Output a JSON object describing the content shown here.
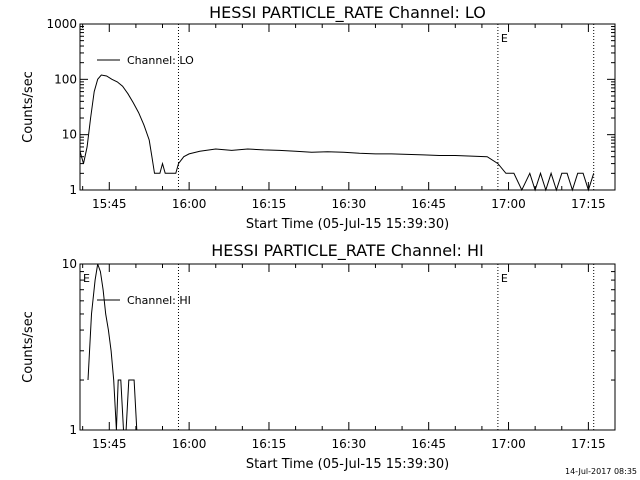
{
  "footer_timestamp": "14-Jul-2017 08:35",
  "chart_data": [
    {
      "type": "line",
      "title": "HESSI PARTICLE_RATE Channel: LO",
      "xlabel": "Start Time (05-Jul-15 15:39:30)",
      "ylabel": "Counts/sec",
      "yscale": "log",
      "ylim": [
        1,
        1000
      ],
      "xlim": [
        "15:39:30",
        "17:20:00"
      ],
      "xticks": [
        "15:45",
        "16:00",
        "16:15",
        "16:30",
        "16:45",
        "17:00",
        "17:15"
      ],
      "yticks": [
        "1",
        "10",
        "100",
        "1000"
      ],
      "legend": {
        "label": "Channel: LO",
        "position": "top-left"
      },
      "markers": [
        {
          "time": "15:39:30",
          "label": ""
        },
        {
          "time": "15:58:00",
          "label": ""
        },
        {
          "time": "16:58:00",
          "label": "E"
        },
        {
          "time": "17:16:00",
          "label": ""
        }
      ],
      "series": [
        {
          "name": "Channel: LO",
          "points": [
            [
              "15:39:30",
              5
            ],
            [
              "15:40:10",
              3
            ],
            [
              "15:40:50",
              6
            ],
            [
              "15:41:30",
              20
            ],
            [
              "15:42:10",
              60
            ],
            [
              "15:42:50",
              100
            ],
            [
              "15:43:30",
              120
            ],
            [
              "15:44:30",
              115
            ],
            [
              "15:45:30",
              100
            ],
            [
              "15:46:30",
              90
            ],
            [
              "15:47:30",
              75
            ],
            [
              "15:48:30",
              55
            ],
            [
              "15:49:30",
              38
            ],
            [
              "15:50:30",
              25
            ],
            [
              "15:51:30",
              15
            ],
            [
              "15:52:30",
              8
            ],
            [
              "15:53:00",
              4
            ],
            [
              "15:53:30",
              2
            ],
            [
              "15:54:30",
              2
            ],
            [
              "15:55:00",
              3
            ],
            [
              "15:55:30",
              2
            ],
            [
              "15:56:30",
              2
            ],
            [
              "15:57:30",
              2
            ],
            [
              "15:58:00",
              3
            ],
            [
              "15:59:00",
              4
            ],
            [
              "16:00:00",
              4.5
            ],
            [
              "16:02:00",
              5
            ],
            [
              "16:05:00",
              5.5
            ],
            [
              "16:08:00",
              5.2
            ],
            [
              "16:11:00",
              5.5
            ],
            [
              "16:14:00",
              5.3
            ],
            [
              "16:17:00",
              5.2
            ],
            [
              "16:20:00",
              5
            ],
            [
              "16:23:00",
              4.8
            ],
            [
              "16:26:00",
              4.9
            ],
            [
              "16:29:00",
              4.8
            ],
            [
              "16:32:00",
              4.6
            ],
            [
              "16:35:00",
              4.5
            ],
            [
              "16:38:00",
              4.5
            ],
            [
              "16:41:00",
              4.4
            ],
            [
              "16:44:00",
              4.3
            ],
            [
              "16:47:00",
              4.2
            ],
            [
              "16:50:00",
              4.2
            ],
            [
              "16:53:00",
              4.1
            ],
            [
              "16:56:00",
              4
            ],
            [
              "16:58:00",
              3
            ],
            [
              "16:59:30",
              2
            ],
            [
              "17:01:00",
              2
            ],
            [
              "17:02:30",
              1
            ],
            [
              "17:04:00",
              2
            ],
            [
              "17:05:00",
              1
            ],
            [
              "17:06:00",
              2
            ],
            [
              "17:07:00",
              1
            ],
            [
              "17:08:00",
              2
            ],
            [
              "17:09:00",
              1
            ],
            [
              "17:10:00",
              2
            ],
            [
              "17:11:00",
              2
            ],
            [
              "17:12:00",
              1
            ],
            [
              "17:13:00",
              2
            ],
            [
              "17:14:00",
              2
            ],
            [
              "17:15:00",
              1
            ],
            [
              "17:16:00",
              2
            ]
          ]
        }
      ]
    },
    {
      "type": "line",
      "title": "HESSI PARTICLE_RATE Channel: HI",
      "xlabel": "Start Time (05-Jul-15 15:39:30)",
      "ylabel": "Counts/sec",
      "yscale": "log",
      "ylim": [
        1,
        10
      ],
      "xlim": [
        "15:39:30",
        "17:20:00"
      ],
      "xticks": [
        "15:45",
        "16:00",
        "16:15",
        "16:30",
        "16:45",
        "17:00",
        "17:15"
      ],
      "yticks": [
        "1",
        "10"
      ],
      "legend": {
        "label": "Channel: HI",
        "position": "top-left"
      },
      "markers": [
        {
          "time": "15:39:30",
          "label": "E"
        },
        {
          "time": "15:58:00",
          "label": ""
        },
        {
          "time": "16:58:00",
          "label": "E"
        },
        {
          "time": "17:16:00",
          "label": ""
        }
      ],
      "series": [
        {
          "name": "Channel: HI",
          "points": [
            [
              "15:41:00",
              2
            ],
            [
              "15:41:40",
              5
            ],
            [
              "15:42:20",
              8
            ],
            [
              "15:42:50",
              10
            ],
            [
              "15:43:20",
              9
            ],
            [
              "15:43:50",
              7
            ],
            [
              "15:44:20",
              5
            ],
            [
              "15:44:50",
              4
            ],
            [
              "15:45:20",
              3
            ],
            [
              "15:45:50",
              2
            ],
            [
              "15:46:20",
              1
            ],
            [
              "15:46:40",
              2
            ],
            [
              "15:47:10",
              2
            ],
            [
              "15:47:40",
              1
            ],
            [
              "15:48:10",
              1
            ],
            [
              "15:48:40",
              2
            ],
            [
              "15:49:10",
              2
            ],
            [
              "15:49:40",
              2
            ],
            [
              "15:50:10",
              1
            ]
          ]
        }
      ]
    }
  ]
}
